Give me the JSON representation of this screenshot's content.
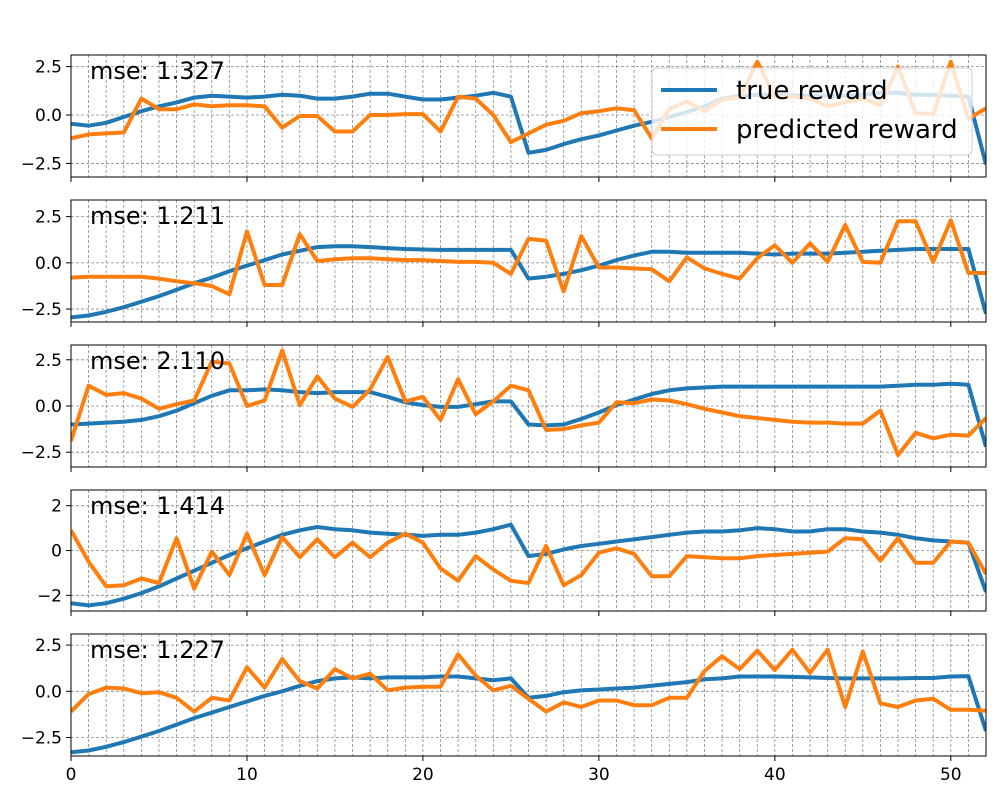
{
  "chart_data": {
    "type": "line",
    "layout": "vertical-stack",
    "colors": {
      "true": "#1f77b4",
      "predicted": "#ff7f0e"
    },
    "legend": {
      "location": "upper-right of first panel",
      "entries": [
        {
          "name": "true reward",
          "series": "true"
        },
        {
          "name": "predicted reward",
          "series": "predicted"
        }
      ]
    },
    "xlim": [
      0,
      52
    ],
    "xticks": [
      0,
      10,
      20,
      30,
      40,
      50
    ],
    "xtick_labels": [
      "0",
      "10",
      "20",
      "30",
      "40",
      "50"
    ],
    "grid": true,
    "panels": [
      {
        "label": "mse: 1.327",
        "ylim": [
          -3.2,
          3.1
        ],
        "yticks": [
          -2.5,
          0,
          2.5
        ],
        "ytick_labels": [
          "−2.5",
          "0.0",
          "2.5"
        ],
        "series": [
          {
            "name": "true reward",
            "key": "true",
            "values": [
              -0.45,
              -0.55,
              -0.4,
              -0.1,
              0.2,
              0.45,
              0.65,
              0.9,
              1.0,
              0.95,
              0.9,
              0.95,
              1.05,
              1.0,
              0.85,
              0.85,
              0.95,
              1.1,
              1.1,
              0.95,
              0.8,
              0.8,
              0.9,
              1.0,
              1.15,
              0.95,
              -1.95,
              -1.8,
              -1.5,
              -1.25,
              -1.05,
              -0.8,
              -0.55,
              -0.35,
              -0.1,
              0.15,
              0.45,
              0.85,
              1.0,
              1.05,
              1.05,
              1.0,
              1.0,
              1.0,
              1.0,
              1.05,
              1.15,
              1.15,
              1.05,
              1.05,
              1.0,
              0.95,
              -2.55
            ]
          },
          {
            "name": "predicted reward",
            "key": "predicted",
            "values": [
              -1.2,
              -1.0,
              -0.95,
              -0.9,
              0.85,
              0.3,
              0.3,
              0.55,
              0.45,
              0.5,
              0.5,
              0.45,
              -0.65,
              -0.05,
              -0.05,
              -0.85,
              -0.85,
              0.0,
              0.0,
              0.05,
              0.05,
              -0.85,
              0.95,
              0.85,
              0.0,
              -1.4,
              -0.95,
              -0.5,
              -0.3,
              0.1,
              0.2,
              0.35,
              0.25,
              -1.2,
              0.3,
              0.7,
              0.2,
              0.8,
              0.9,
              2.75,
              0.95,
              0.95,
              0.85,
              0.45,
              0.65,
              0.85,
              0.5,
              2.5,
              0.1,
              0.05,
              2.75,
              -0.2,
              0.35
            ]
          }
        ]
      },
      {
        "label": "mse: 1.211",
        "ylim": [
          -3.2,
          3.4
        ],
        "yticks": [
          -2.5,
          0,
          2.5
        ],
        "ytick_labels": [
          "−2.5",
          "0.0",
          "2.5"
        ],
        "series": [
          {
            "name": "true reward",
            "key": "true",
            "values": [
              -2.95,
              -2.85,
              -2.65,
              -2.4,
              -2.1,
              -1.8,
              -1.45,
              -1.1,
              -0.8,
              -0.45,
              -0.15,
              0.15,
              0.45,
              0.65,
              0.85,
              0.9,
              0.9,
              0.85,
              0.8,
              0.75,
              0.72,
              0.7,
              0.7,
              0.7,
              0.7,
              0.7,
              -0.85,
              -0.75,
              -0.6,
              -0.4,
              -0.15,
              0.15,
              0.4,
              0.6,
              0.6,
              0.55,
              0.55,
              0.55,
              0.55,
              0.5,
              0.45,
              0.5,
              0.5,
              0.5,
              0.55,
              0.6,
              0.65,
              0.7,
              0.75,
              0.75,
              0.75,
              0.75,
              -2.75
            ]
          },
          {
            "name": "predicted reward",
            "key": "predicted",
            "values": [
              -0.8,
              -0.75,
              -0.75,
              -0.75,
              -0.75,
              -0.85,
              -1.0,
              -1.1,
              -1.25,
              -1.7,
              1.7,
              -1.2,
              -1.2,
              1.55,
              0.1,
              0.2,
              0.25,
              0.25,
              0.2,
              0.15,
              0.15,
              0.1,
              0.05,
              0.05,
              0.0,
              -0.6,
              1.3,
              1.2,
              -1.55,
              1.45,
              -0.25,
              -0.25,
              -0.3,
              -0.35,
              -1.0,
              0.3,
              -0.3,
              -0.6,
              -0.85,
              0.25,
              0.95,
              0.0,
              1.05,
              0.05,
              2.05,
              0.05,
              0.0,
              2.25,
              2.25,
              0.05,
              2.3,
              -0.55,
              -0.55
            ]
          }
        ]
      },
      {
        "label": "mse: 2.110",
        "ylim": [
          -3.3,
          3.3
        ],
        "yticks": [
          -2.5,
          0,
          2.5
        ],
        "ytick_labels": [
          "−2.5",
          "0.0",
          "2.5"
        ],
        "series": [
          {
            "name": "true reward",
            "key": "true",
            "values": [
              -1.0,
              -0.95,
              -0.9,
              -0.85,
              -0.75,
              -0.55,
              -0.25,
              0.15,
              0.55,
              0.85,
              0.85,
              0.9,
              0.85,
              0.75,
              0.7,
              0.75,
              0.75,
              0.75,
              0.5,
              0.2,
              0.05,
              -0.05,
              -0.05,
              0.1,
              0.25,
              0.25,
              -1.0,
              -1.05,
              -1.0,
              -0.7,
              -0.35,
              0.05,
              0.35,
              0.65,
              0.85,
              0.95,
              1.0,
              1.05,
              1.05,
              1.05,
              1.05,
              1.05,
              1.05,
              1.05,
              1.05,
              1.05,
              1.05,
              1.1,
              1.15,
              1.15,
              1.2,
              1.15,
              -2.2
            ]
          },
          {
            "name": "predicted reward",
            "key": "predicted",
            "values": [
              -1.9,
              1.1,
              0.6,
              0.7,
              0.4,
              -0.15,
              0.1,
              0.3,
              2.4,
              2.3,
              0.0,
              0.3,
              3.0,
              0.05,
              1.6,
              0.4,
              -0.05,
              0.9,
              2.65,
              0.25,
              0.5,
              -0.75,
              1.45,
              -0.45,
              0.25,
              1.1,
              0.85,
              -1.3,
              -1.25,
              -1.05,
              -0.9,
              0.2,
              0.15,
              0.35,
              0.3,
              0.1,
              -0.15,
              -0.35,
              -0.55,
              -0.65,
              -0.75,
              -0.85,
              -0.9,
              -0.9,
              -0.95,
              -0.95,
              -0.25,
              -2.65,
              -1.45,
              -1.75,
              -1.55,
              -1.6,
              -0.65
            ]
          }
        ]
      },
      {
        "label": "mse: 1.414",
        "ylim": [
          -2.7,
          2.7
        ],
        "yticks": [
          -2,
          0,
          2
        ],
        "ytick_labels": [
          "−2",
          "0",
          "2"
        ],
        "series": [
          {
            "name": "true reward",
            "key": "true",
            "values": [
              -2.35,
              -2.45,
              -2.35,
              -2.15,
              -1.9,
              -1.6,
              -1.25,
              -0.9,
              -0.55,
              -0.2,
              0.1,
              0.4,
              0.7,
              0.9,
              1.05,
              0.95,
              0.9,
              0.8,
              0.75,
              0.7,
              0.65,
              0.7,
              0.7,
              0.8,
              0.95,
              1.15,
              -0.25,
              -0.15,
              0.05,
              0.2,
              0.3,
              0.4,
              0.5,
              0.6,
              0.7,
              0.8,
              0.85,
              0.85,
              0.9,
              1.0,
              0.95,
              0.85,
              0.85,
              0.95,
              0.95,
              0.85,
              0.8,
              0.7,
              0.55,
              0.45,
              0.4,
              0.35,
              -1.85
            ]
          },
          {
            "name": "predicted reward",
            "key": "predicted",
            "values": [
              0.9,
              -0.5,
              -1.6,
              -1.55,
              -1.25,
              -1.45,
              0.55,
              -1.7,
              -0.05,
              -1.1,
              0.75,
              -1.1,
              0.6,
              -0.3,
              0.5,
              -0.3,
              0.35,
              -0.3,
              0.35,
              0.75,
              0.35,
              -0.8,
              -1.35,
              -0.25,
              -0.85,
              -1.35,
              -1.45,
              0.2,
              -1.55,
              -1.1,
              -0.1,
              0.1,
              -0.15,
              -1.15,
              -1.15,
              -0.25,
              -0.3,
              -0.35,
              -0.35,
              -0.25,
              -0.2,
              -0.15,
              -0.1,
              -0.05,
              0.55,
              0.5,
              -0.45,
              0.55,
              -0.55,
              -0.55,
              0.4,
              0.35,
              -1.05
            ]
          }
        ]
      },
      {
        "label": "mse: 1.227",
        "ylim": [
          -3.5,
          3.1
        ],
        "yticks": [
          -2.5,
          0,
          2.5
        ],
        "ytick_labels": [
          "−2.5",
          "0.0",
          "2.5"
        ],
        "series": [
          {
            "name": "true reward",
            "key": "true",
            "values": [
              -3.3,
              -3.2,
              -3.0,
              -2.75,
              -2.45,
              -2.15,
              -1.8,
              -1.45,
              -1.15,
              -0.85,
              -0.55,
              -0.25,
              0.0,
              0.3,
              0.55,
              0.7,
              0.75,
              0.7,
              0.75,
              0.75,
              0.75,
              0.8,
              0.8,
              0.7,
              0.6,
              0.7,
              -0.35,
              -0.25,
              -0.05,
              0.05,
              0.1,
              0.15,
              0.2,
              0.3,
              0.4,
              0.5,
              0.65,
              0.7,
              0.8,
              0.8,
              0.8,
              0.78,
              0.75,
              0.72,
              0.7,
              0.7,
              0.7,
              0.7,
              0.72,
              0.72,
              0.8,
              0.82,
              -2.15
            ]
          },
          {
            "name": "predicted reward",
            "key": "predicted",
            "values": [
              -1.1,
              -0.15,
              0.2,
              0.15,
              -0.1,
              -0.05,
              -0.35,
              -1.1,
              -0.35,
              -0.5,
              1.3,
              0.2,
              1.75,
              0.55,
              0.15,
              1.2,
              0.7,
              0.95,
              0.05,
              0.2,
              0.25,
              0.25,
              2.0,
              0.85,
              0.05,
              0.3,
              -0.4,
              -1.1,
              -0.6,
              -0.85,
              -0.5,
              -0.5,
              -0.75,
              -0.75,
              -0.35,
              -0.35,
              1.1,
              1.9,
              1.2,
              2.2,
              1.15,
              2.25,
              1.0,
              2.25,
              -0.85,
              2.15,
              -0.65,
              -0.85,
              -0.5,
              -0.4,
              -1.0,
              -1.0,
              -1.05
            ]
          }
        ]
      }
    ]
  }
}
